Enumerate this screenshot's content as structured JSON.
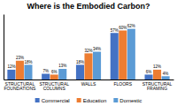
{
  "chart_data": {
    "type": "bar",
    "title": "Where is the Embodied Carbon?",
    "categories": [
      "STRUCTURAL\nFOUNDATIONS",
      "STRUCTURAL\nCOLUMNS",
      "WALLS",
      "FLOORS",
      "STRUCTURAL\nFRAMING"
    ],
    "series": [
      {
        "name": "Commercial",
        "color": "#4472C4",
        "values": [
          12,
          7,
          18,
          57,
          6
        ],
        "value_labels": [
          "12%",
          "7%",
          "18%",
          "57%",
          "6%"
        ]
      },
      {
        "name": "Education",
        "color": "#ED7D31",
        "values": [
          23,
          6,
          32,
          60,
          12
        ],
        "value_labels": [
          "23%",
          "6%",
          "32%",
          "60%",
          "12%"
        ]
      },
      {
        "name": "Domestic",
        "color": "#5B9BD5",
        "values": [
          18,
          13,
          34,
          62,
          4
        ],
        "value_labels": [
          "18%",
          "13%",
          "34%",
          "62%",
          "4%"
        ]
      }
    ],
    "ylim": [
      0,
      80
    ],
    "yticks": [],
    "grid": false,
    "tick_labels": "x",
    "data_labels": true,
    "legend": "bottom"
  }
}
